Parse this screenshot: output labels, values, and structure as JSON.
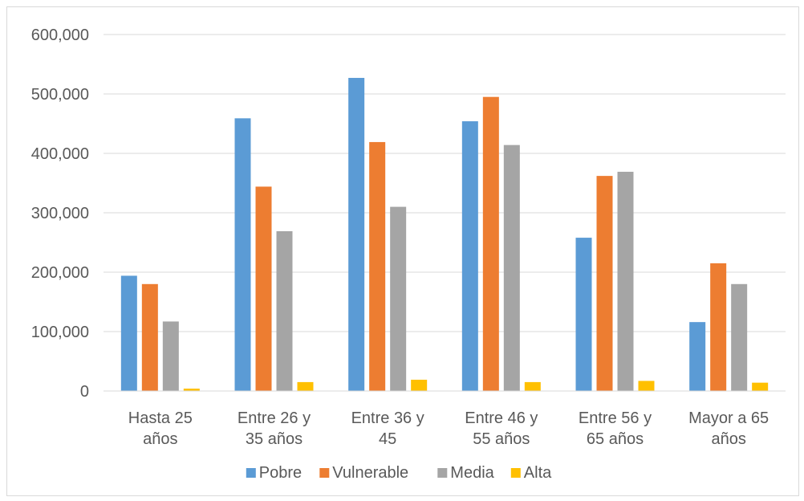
{
  "chart_data": {
    "type": "bar",
    "title": "",
    "xlabel": "",
    "ylabel": "",
    "categories": [
      [
        "Hasta 25",
        "años"
      ],
      [
        "Entre 26 y",
        "35 años"
      ],
      [
        "Entre 36 y",
        "45"
      ],
      [
        "Entre 46 y",
        "55 años"
      ],
      [
        "Entre 56 y",
        "65 años"
      ],
      [
        "Mayor a 65",
        "años"
      ]
    ],
    "ylim": [
      0,
      600000
    ],
    "yticks": [
      0,
      100000,
      200000,
      300000,
      400000,
      500000,
      600000
    ],
    "ytick_labels": [
      "0",
      "100,000",
      "200,000",
      "300,000",
      "400,000",
      "500,000",
      "600,000"
    ],
    "grid": true,
    "legend_position": "bottom",
    "series": [
      {
        "name": "Pobre",
        "color": "#5b9bd5",
        "values": [
          194000,
          459000,
          527000,
          454000,
          258000,
          116000
        ]
      },
      {
        "name": "Vulnerable",
        "color": "#ed7d31",
        "values": [
          180000,
          344000,
          419000,
          495000,
          362000,
          215000
        ]
      },
      {
        "name": "Media",
        "color": "#a5a5a5",
        "values": [
          117000,
          269000,
          310000,
          414000,
          369000,
          180000
        ]
      },
      {
        "name": "Alta",
        "color": "#ffc000",
        "values": [
          4000,
          15000,
          19000,
          15000,
          17000,
          14000
        ]
      }
    ]
  }
}
